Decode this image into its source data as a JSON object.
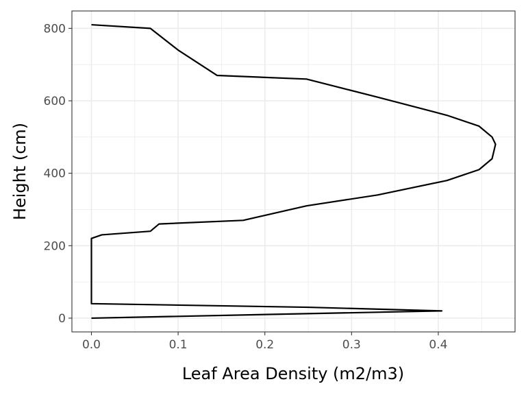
{
  "chart_data": {
    "type": "line",
    "title": "",
    "xlabel": "Leaf Area Density (m2/m3)",
    "ylabel": "Height (cm)",
    "xlim": [
      -0.0225,
      0.4885
    ],
    "ylim": [
      -38,
      848
    ],
    "x_ticks": [
      0.0,
      0.1,
      0.2,
      0.3,
      0.4
    ],
    "x_tick_labels": [
      "0.0",
      "0.1",
      "0.2",
      "0.3",
      "0.4"
    ],
    "y_ticks": [
      0,
      200,
      400,
      600,
      800
    ],
    "y_tick_labels": [
      "0",
      "200",
      "400",
      "600",
      "800"
    ],
    "grid": true,
    "legend": "none",
    "series": [
      {
        "color": "#000000",
        "points": [
          [
            0.0,
            0
          ],
          [
            0.2,
            10
          ],
          [
            0.404,
            20
          ],
          [
            0.25,
            30
          ],
          [
            0.0,
            40
          ],
          [
            0.0,
            100
          ],
          [
            0.0,
            150
          ],
          [
            0.0,
            220
          ],
          [
            0.012,
            230
          ],
          [
            0.068,
            240
          ],
          [
            0.078,
            260
          ],
          [
            0.175,
            270
          ],
          [
            0.248,
            310
          ],
          [
            0.33,
            340
          ],
          [
            0.41,
            380
          ],
          [
            0.447,
            410
          ],
          [
            0.462,
            440
          ],
          [
            0.466,
            480
          ],
          [
            0.462,
            500
          ],
          [
            0.447,
            530
          ],
          [
            0.41,
            560
          ],
          [
            0.33,
            610
          ],
          [
            0.248,
            660
          ],
          [
            0.145,
            670
          ],
          [
            0.1,
            740
          ],
          [
            0.068,
            800
          ],
          [
            0.0,
            810
          ]
        ]
      }
    ]
  }
}
